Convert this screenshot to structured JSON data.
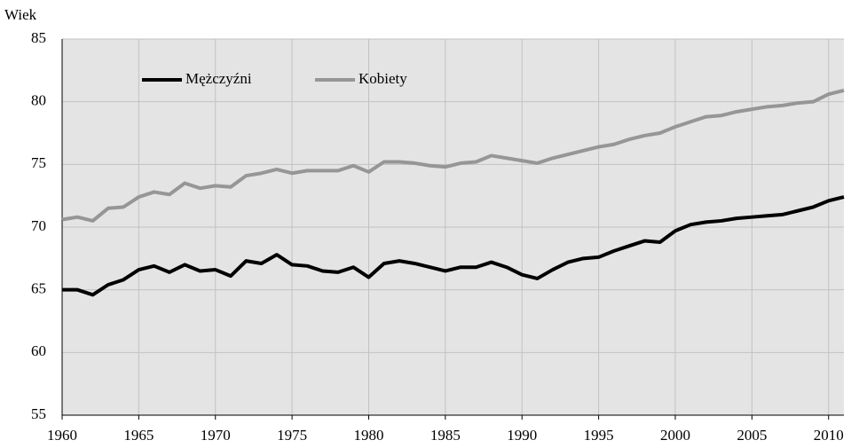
{
  "chart_data": {
    "type": "line",
    "y_label": "Wiek",
    "x": [
      1960,
      1961,
      1962,
      1963,
      1964,
      1965,
      1966,
      1967,
      1968,
      1969,
      1970,
      1971,
      1972,
      1973,
      1974,
      1975,
      1976,
      1977,
      1978,
      1979,
      1980,
      1981,
      1982,
      1983,
      1984,
      1985,
      1986,
      1987,
      1988,
      1989,
      1990,
      1991,
      1992,
      1993,
      1994,
      1995,
      1996,
      1997,
      1998,
      1999,
      2000,
      2001,
      2002,
      2003,
      2004,
      2005,
      2006,
      2007,
      2008,
      2009,
      2010,
      2011
    ],
    "series": [
      {
        "name": "Mężczyźni",
        "color": "#000000",
        "values": [
          65.0,
          65.0,
          64.6,
          65.4,
          65.8,
          66.6,
          66.9,
          66.4,
          67.0,
          66.5,
          66.6,
          66.1,
          67.3,
          67.1,
          67.8,
          67.0,
          66.9,
          66.5,
          66.4,
          66.8,
          66.0,
          67.1,
          67.3,
          67.1,
          66.8,
          66.5,
          66.8,
          66.8,
          67.2,
          66.8,
          66.2,
          65.9,
          66.6,
          67.2,
          67.5,
          67.6,
          68.1,
          68.5,
          68.9,
          68.8,
          69.7,
          70.2,
          70.4,
          70.5,
          70.7,
          70.8,
          70.9,
          71.0,
          71.3,
          71.6,
          72.1,
          72.4
        ]
      },
      {
        "name": "Kobiety",
        "color": "#969696",
        "values": [
          70.6,
          70.8,
          70.5,
          71.5,
          71.6,
          72.4,
          72.8,
          72.6,
          73.5,
          73.1,
          73.3,
          73.2,
          74.1,
          74.3,
          74.6,
          74.3,
          74.5,
          74.5,
          74.5,
          74.9,
          74.4,
          75.2,
          75.2,
          75.1,
          74.9,
          74.8,
          75.1,
          75.2,
          75.7,
          75.5,
          75.3,
          75.1,
          75.5,
          75.8,
          76.1,
          76.4,
          76.6,
          77.0,
          77.3,
          77.5,
          78.0,
          78.4,
          78.8,
          78.9,
          79.2,
          79.4,
          79.6,
          79.7,
          79.9,
          80.0,
          80.6,
          80.9
        ]
      }
    ],
    "xlim": [
      1960,
      2011
    ],
    "xticks": [
      1960,
      1965,
      1970,
      1975,
      1980,
      1985,
      1990,
      1995,
      2000,
      2005,
      2010
    ],
    "ylim": [
      55,
      85
    ],
    "yticks": [
      55,
      60,
      65,
      70,
      75,
      80,
      85
    ],
    "grid": true
  }
}
